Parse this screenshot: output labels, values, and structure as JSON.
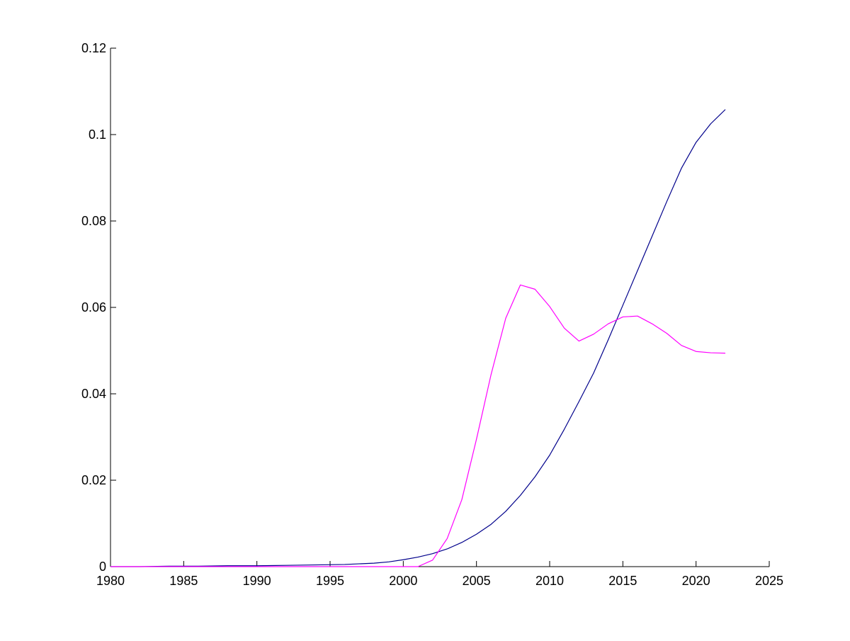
{
  "chart_data": {
    "type": "line",
    "title": "",
    "xlabel": "",
    "ylabel": "",
    "xlim": [
      1980,
      2025
    ],
    "ylim": [
      0,
      0.12
    ],
    "xticks": [
      "1980",
      "1985",
      "1990",
      "1995",
      "2000",
      "2005",
      "2010",
      "2015",
      "2020",
      "2025"
    ],
    "yticks": [
      "0",
      "0.02",
      "0.04",
      "0.06",
      "0.08",
      "0.1",
      "0.12"
    ],
    "grid": false,
    "legend": "none",
    "series": [
      {
        "color": "#00008b",
        "x": [
          1980,
          1982,
          1984,
          1986,
          1988,
          1990,
          1992,
          1994,
          1996,
          1998,
          1999,
          2000,
          2001,
          2002,
          2003,
          2004,
          2005,
          2006,
          2007,
          2008,
          2009,
          2010,
          2011,
          2012,
          2013,
          2014,
          2015,
          2016,
          2017,
          2018,
          2019,
          2020,
          2021,
          2022
        ],
        "y": [
          0,
          0,
          0.0001,
          0.0001,
          0.0002,
          0.0002,
          0.0003,
          0.0004,
          0.0005,
          0.0008,
          0.0011,
          0.0016,
          0.0022,
          0.003,
          0.0041,
          0.0056,
          0.0075,
          0.0098,
          0.0128,
          0.0165,
          0.0208,
          0.0258,
          0.0318,
          0.0382,
          0.0448,
          0.0525,
          0.0605,
          0.0685,
          0.0765,
          0.0845,
          0.0922,
          0.0982,
          0.1025,
          0.1058
        ]
      },
      {
        "color": "#ff00ff",
        "x": [
          1980,
          1998,
          2000,
          2001,
          2002,
          2003,
          2004,
          2005,
          2006,
          2007,
          2008,
          2009,
          2010,
          2011,
          2012,
          2013,
          2014,
          2015,
          2016,
          2017,
          2018,
          2019,
          2020,
          2021,
          2022
        ],
        "y": [
          0,
          0,
          0,
          0,
          0.0015,
          0.0065,
          0.0155,
          0.0295,
          0.0445,
          0.0575,
          0.0652,
          0.0642,
          0.0602,
          0.0552,
          0.0522,
          0.0538,
          0.0562,
          0.0578,
          0.058,
          0.0562,
          0.054,
          0.0512,
          0.0498,
          0.0495,
          0.0494
        ]
      }
    ]
  }
}
